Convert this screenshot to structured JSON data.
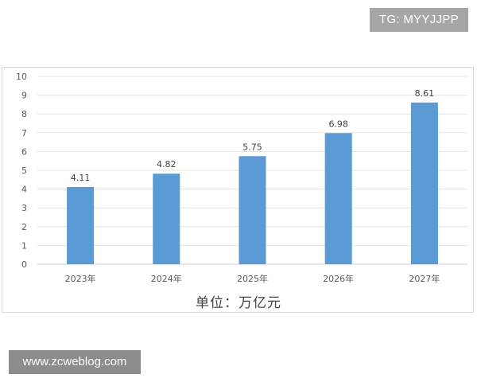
{
  "watermarks": {
    "top": "TG: MYYJJPP",
    "bottom": "www.zcweblog.com"
  },
  "chart_data": {
    "type": "bar",
    "categories": [
      "2023年",
      "2024年",
      "2025年",
      "2026年",
      "2027年"
    ],
    "values": [
      4.11,
      4.82,
      5.75,
      6.98,
      8.61
    ],
    "data_labels": [
      "4.11",
      "4.82",
      "5.75",
      "6.98",
      "8.61"
    ],
    "y_ticks": [
      "0",
      "1",
      "2",
      "3",
      "4",
      "5",
      "6",
      "7",
      "8",
      "9",
      "10"
    ],
    "ylim": [
      0,
      10
    ],
    "xlabel": "单位：万亿元",
    "ylabel": "",
    "title": "",
    "grid": true,
    "legend": "none",
    "colors": {
      "bar": "#5b9bd5",
      "grid": "#e3e3e3",
      "axis_text": "#595959",
      "label_text": "#404040"
    }
  }
}
